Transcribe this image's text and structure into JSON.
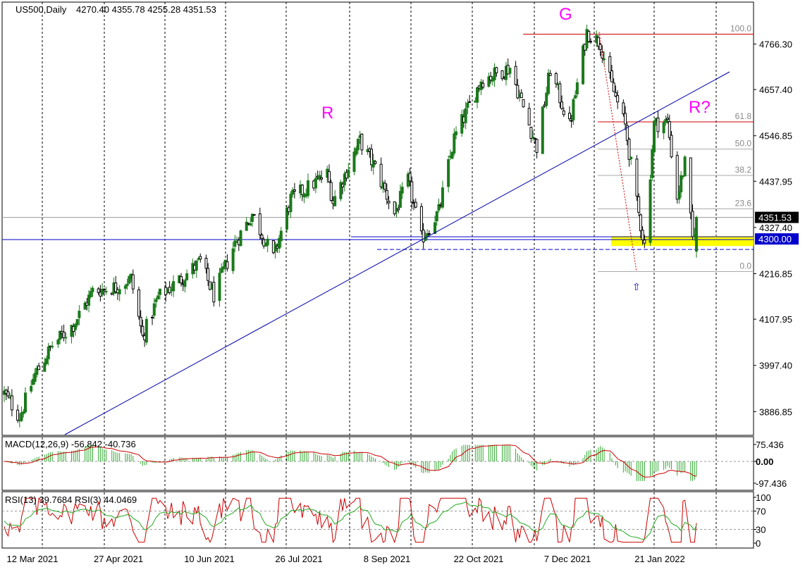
{
  "header": {
    "symbol_label": "US500,Daily",
    "ohlc_label": "4270.40 4355.78 4255.28 4351.53"
  },
  "annotations": {
    "g": "G",
    "r": "R",
    "r_question": "R?",
    "arrow_glyph": "⇧"
  },
  "fib_levels": [
    {
      "label": "100.0",
      "price": 4790
    },
    {
      "label": "61.8",
      "price": 4580
    },
    {
      "label": "50.0",
      "price": 4515
    },
    {
      "label": "38.2",
      "price": 4452
    },
    {
      "label": "23.6",
      "price": 4372
    },
    {
      "label": "0.0",
      "price": 4222
    }
  ],
  "price_badges": [
    {
      "label": "4351.53",
      "price": 4351.53,
      "bg": "#000000",
      "fg": "#ffffff"
    },
    {
      "label": "4300.00",
      "price": 4300.0,
      "bg": "#0000cc",
      "fg": "#ffffff"
    }
  ],
  "macd_panel": {
    "label": "MACD(12,26,9) -56.842 -40.736",
    "axis_labels": [
      {
        "label": "75.436",
        "value": 75.436
      },
      {
        "label": "0.00",
        "value": 0
      },
      {
        "label": "-97.436",
        "value": -97.436
      }
    ]
  },
  "rsi_panel": {
    "label": "RSI(13) 39.7684  RSI(3) 44.0469",
    "axis_labels": [
      {
        "label": "100",
        "value": 100
      },
      {
        "label": "70",
        "value": 70
      },
      {
        "label": "30",
        "value": 30
      },
      {
        "label": "0",
        "value": 0
      }
    ]
  },
  "colors": {
    "bull": "#1a7a1a",
    "bear": "#000000",
    "trendline": "#0000aa",
    "horizontal": "#0000cc",
    "resistance": "#cc0000",
    "label_magenta": "#ff00ff",
    "fib_line": "#aaaaaa",
    "yellow_zone": "#ffff00",
    "macd_hist": "#33aa33",
    "macd_signal": "#cc0000",
    "rsi_fast": "#cc0000",
    "rsi_slow": "#22aa22"
  },
  "chart_data": [
    {
      "type": "candlestick",
      "title": "US500,Daily",
      "x_axis_type": "date",
      "y_axis_labels": [
        4766.3,
        4657.4,
        4546.85,
        4437.95,
        4327.4,
        4216.85,
        4107.95,
        3997.4,
        3886.85
      ],
      "ylim": [
        3830,
        4825
      ],
      "x_tick_labels": [
        "12 Mar 2021",
        "27 Apr 2021",
        "10 Jun 2021",
        "26 Jul 2021",
        "8 Sep 2021",
        "22 Oct 2021",
        "7 Dec 2021",
        "21 Jan 2022"
      ],
      "grid": "vertical dashed",
      "ohlc_keypoints": [
        {
          "date": "2021-03-01",
          "close": 3930
        },
        {
          "date": "2021-03-09",
          "close": 3875
        },
        {
          "date": "2021-03-17",
          "close": 3975
        },
        {
          "date": "2021-03-26",
          "close": 4045
        },
        {
          "date": "2021-04-06",
          "close": 4095
        },
        {
          "date": "2021-04-16",
          "close": 4175
        },
        {
          "date": "2021-04-28",
          "close": 4185
        },
        {
          "date": "2021-05-06",
          "close": 4205
        },
        {
          "date": "2021-05-12",
          "close": 4065
        },
        {
          "date": "2021-05-20",
          "close": 4160
        },
        {
          "date": "2021-06-01",
          "close": 4205
        },
        {
          "date": "2021-06-11",
          "close": 4245
        },
        {
          "date": "2021-06-18",
          "close": 4165
        },
        {
          "date": "2021-06-29",
          "close": 4290
        },
        {
          "date": "2021-07-08",
          "close": 4360
        },
        {
          "date": "2021-07-19",
          "close": 4255
        },
        {
          "date": "2021-07-28",
          "close": 4395
        },
        {
          "date": "2021-08-16",
          "close": 4455
        },
        {
          "date": "2021-08-19",
          "close": 4390
        },
        {
          "date": "2021-09-02",
          "close": 4535
        },
        {
          "date": "2021-09-10",
          "close": 4470
        },
        {
          "date": "2021-09-20",
          "close": 4360
        },
        {
          "date": "2021-09-27",
          "close": 4440
        },
        {
          "date": "2021-10-04",
          "close": 4300
        },
        {
          "date": "2021-10-13",
          "close": 4365
        },
        {
          "date": "2021-10-21",
          "close": 4540
        },
        {
          "date": "2021-11-04",
          "close": 4680
        },
        {
          "date": "2021-11-19",
          "close": 4710
        },
        {
          "date": "2021-11-30",
          "close": 4560
        },
        {
          "date": "2021-12-03",
          "close": 4520
        },
        {
          "date": "2021-12-10",
          "close": 4705
        },
        {
          "date": "2021-12-20",
          "close": 4570
        },
        {
          "date": "2021-12-29",
          "close": 4795
        },
        {
          "date": "2022-01-05",
          "close": 4770
        },
        {
          "date": "2022-01-10",
          "close": 4680
        },
        {
          "date": "2022-01-18",
          "close": 4570
        },
        {
          "date": "2022-01-24",
          "close": 4385
        },
        {
          "date": "2022-01-28",
          "close": 4285
        },
        {
          "date": "2022-02-02",
          "close": 4575
        },
        {
          "date": "2022-02-09",
          "close": 4580
        },
        {
          "date": "2022-02-14",
          "close": 4400
        },
        {
          "date": "2022-02-18",
          "close": 4480
        },
        {
          "date": "2022-02-22",
          "close": 4300
        },
        {
          "date": "2022-02-24",
          "close": 4351.53
        }
      ]
    },
    {
      "type": "bar+line",
      "title": "MACD(12,26,9)",
      "series": [
        {
          "name": "MACD",
          "value_last": -56.842
        },
        {
          "name": "Signal",
          "value_last": -40.736
        }
      ],
      "ylim": [
        -97.436,
        75.436
      ]
    },
    {
      "type": "line",
      "title": "RSI",
      "series": [
        {
          "name": "RSI(13)",
          "value_last": 39.7684
        },
        {
          "name": "RSI(3)",
          "value_last": 44.0469
        }
      ],
      "ylim": [
        0,
        100
      ],
      "levels": [
        70,
        30
      ]
    }
  ]
}
